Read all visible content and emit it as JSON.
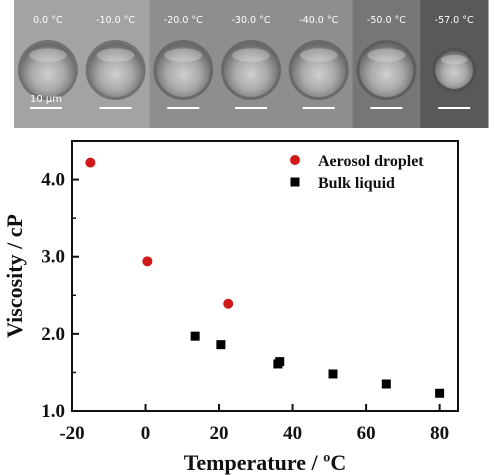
{
  "micrographs": {
    "panels": [
      {
        "label": "0.0 °C",
        "tone": "#a3a3a3"
      },
      {
        "label": "-10.0 °C",
        "tone": "#a3a3a3"
      },
      {
        "label": "-20.0 °C",
        "tone": "#8e8e8e"
      },
      {
        "label": "-30.0 °C",
        "tone": "#8e8e8e"
      },
      {
        "label": "-40.0 °C",
        "tone": "#8e8e8e"
      },
      {
        "label": "-50.0 °C",
        "tone": "#767676"
      },
      {
        "label": "-57.0 °C",
        "tone": "#595959"
      }
    ],
    "scale_bar_label": "10 µm"
  },
  "chart_data": {
    "type": "scatter",
    "xlabel": "Temperature / ºC",
    "ylabel": "Viscosity / cP",
    "xlim": [
      -20,
      85
    ],
    "ylim": [
      1.0,
      4.5
    ],
    "x_ticks": [
      "-20",
      "0",
      "20",
      "40",
      "60",
      "80"
    ],
    "y_ticks": [
      "1.0",
      "2.0",
      "3.0",
      "4.0"
    ],
    "legend_position": "top-right",
    "grid": false,
    "series": [
      {
        "name": "Aerosol droplet",
        "marker": "circle",
        "color": "#d01818",
        "points": [
          [
            -15,
            4.22
          ],
          [
            0.5,
            2.94
          ],
          [
            22.5,
            2.39
          ]
        ]
      },
      {
        "name": "Bulk liquid",
        "marker": "square",
        "color": "#000000",
        "points": [
          [
            13.5,
            1.97
          ],
          [
            20.5,
            1.86
          ],
          [
            36,
            1.61
          ],
          [
            36.5,
            1.64
          ],
          [
            51,
            1.48
          ],
          [
            65.5,
            1.35
          ],
          [
            80,
            1.23
          ]
        ]
      }
    ]
  }
}
